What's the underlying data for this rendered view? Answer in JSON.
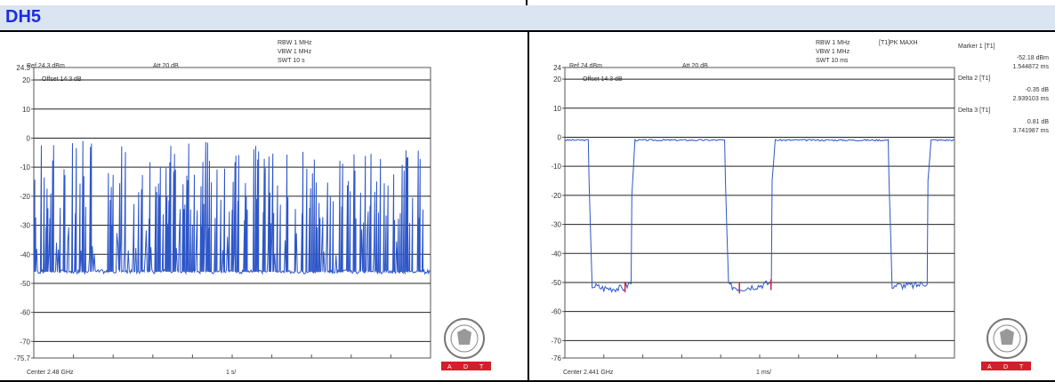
{
  "header": {
    "title": "DH5"
  },
  "colors": {
    "trace": "#2d56c9",
    "marker": "#d0243a",
    "adt": "#d31f2c",
    "header_bg": "#dbe5f1",
    "header_text": "#1a2ee0"
  },
  "left": {
    "ref": "Ref 24.3 dBm",
    "att": "Att  20 dB",
    "rbw": "RBW 1 MHz",
    "vbw": "VBW 1 MHz",
    "swt": "SWT 10 s",
    "offset": "Offset 14.3 dB",
    "center": "Center 2.48 GHz",
    "span": "1 s/",
    "ylabels": [
      "24.3",
      "20",
      "10",
      "0",
      "-10",
      "-20",
      "-30",
      "-40",
      "-50",
      "-60",
      "-70",
      "-75.7"
    ],
    "adt": [
      "A",
      "D",
      "T"
    ],
    "seal_icon": "bureau-veritas-seal-icon"
  },
  "right": {
    "ref": "Ref 24 dBm",
    "att": "Att  20 dB",
    "rbw": "RBW 1 MHz",
    "vbw": "VBW 1 MHz",
    "swt": "SWT 10 ms",
    "trace_mode": "[T1]PK MAXH",
    "offset": "Offset 14.3 dB",
    "center": "Center 2.441 GHz",
    "span": "1 ms/",
    "ylabels": [
      "24",
      "20",
      "10",
      "0",
      "-10",
      "-20",
      "-30",
      "-40",
      "-50",
      "-60",
      "-70",
      "-76"
    ],
    "markers": [
      {
        "name": "Marker 1 [T1]",
        "level": "-52.18 dBm",
        "time": "1.544872 ms"
      },
      {
        "name": "Delta 2 [T1]",
        "level": "-0.35 dB",
        "time": "2.939103 ms"
      },
      {
        "name": "Delta 3 [T1]",
        "level": "0.81 dB",
        "time": "3.741987 ms"
      }
    ],
    "adt": [
      "A",
      "D",
      "T"
    ],
    "seal_icon": "bureau-veritas-seal-icon"
  },
  "chart_data": [
    {
      "type": "line",
      "title": "",
      "xlabel": "Center 2.48 GHz",
      "ylabel": "",
      "x_division": "1 s/",
      "ylim": [
        -75.7,
        24.3
      ],
      "grid": true,
      "description_values": {
        "noise_floor_dbm": -46,
        "burst_peak_dbm": -1
      },
      "series": [
        {
          "values": []
        }
      ]
    },
    {
      "type": "line",
      "title": "",
      "xlabel": "Center 2.441 GHz",
      "ylabel": "",
      "x_division": "1 ms/",
      "xlim": [
        0,
        10
      ],
      "ylim": [
        -76,
        24
      ],
      "grid": true,
      "series": [
        {
          "x": [
            0,
            0.6,
            0.62,
            0.7,
            1.0,
            1.5,
            1.7,
            1.72,
            1.8,
            4.1,
            4.12,
            4.2,
            4.5,
            5.0,
            5.3,
            5.32,
            5.4,
            8.3,
            8.32,
            8.4,
            9.0,
            9.3,
            9.32,
            9.4,
            10.0
          ],
          "values": [
            -1,
            -1,
            -15,
            -51,
            -52,
            -52,
            -50,
            -20,
            -1,
            -1,
            -15,
            -51,
            -52,
            -51,
            -50,
            -15,
            -1,
            -1,
            -15,
            -51,
            -51,
            -50,
            -15,
            -1,
            -1
          ]
        }
      ],
      "markers": [
        {
          "label": "Marker 1 [T1]",
          "x": 1.545,
          "y": -52.18
        },
        {
          "label": "Delta 2 [T1]",
          "x": 4.48,
          "y": -52.53
        },
        {
          "label": "Delta 3 [T1]",
          "x": 5.29,
          "y": -51.37
        }
      ]
    }
  ]
}
